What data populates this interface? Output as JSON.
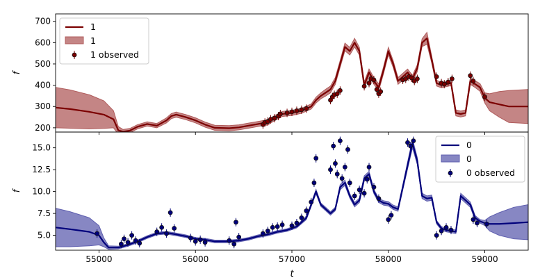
{
  "chart_data": [
    {
      "type": "line",
      "panel": "top",
      "xlabel": "",
      "ylabel": "f",
      "xlim": [
        54550,
        59450
      ],
      "ylim": [
        180,
        735
      ],
      "yticks": [
        200,
        300,
        400,
        500,
        600,
        700
      ],
      "xticks": [
        55000,
        56000,
        57000,
        58000,
        59000
      ],
      "color": "#7b0000",
      "band_color": "#b05c5c",
      "legend": {
        "position": "upper-left",
        "line_label": "1",
        "band_label": "1",
        "points_label": "1 observed"
      },
      "model": {
        "x": [
          54550,
          54700,
          54900,
          55050,
          55150,
          55200,
          55250,
          55320,
          55400,
          55500,
          55600,
          55700,
          55750,
          55800,
          55900,
          56000,
          56100,
          56200,
          56350,
          56450,
          56550,
          56650,
          56700,
          56750,
          56800,
          56900,
          57000,
          57100,
          57200,
          57250,
          57300,
          57350,
          57400,
          57450,
          57500,
          57550,
          57600,
          57650,
          57700,
          57750,
          57800,
          57850,
          57900,
          57950,
          58000,
          58050,
          58100,
          58150,
          58200,
          58250,
          58300,
          58350,
          58400,
          58450,
          58500,
          58550,
          58600,
          58650,
          58700,
          58750,
          58800,
          58850,
          58900,
          58950,
          59000,
          59050,
          59150,
          59250,
          59450
        ],
        "y": [
          295,
          288,
          275,
          262,
          240,
          188,
          182,
          187,
          205,
          218,
          210,
          235,
          255,
          262,
          250,
          235,
          215,
          200,
          198,
          202,
          210,
          218,
          222,
          225,
          240,
          265,
          270,
          280,
          300,
          330,
          350,
          365,
          380,
          420,
          500,
          580,
          560,
          600,
          560,
          400,
          460,
          420,
          390,
          470,
          560,
          500,
          420,
          440,
          460,
          430,
          480,
          600,
          620,
          520,
          410,
          400,
          405,
          410,
          270,
          265,
          270,
          420,
          405,
          390,
          340,
          320,
          310,
          300,
          300
        ],
        "band": [
          95,
          90,
          80,
          65,
          40,
          18,
          10,
          10,
          10,
          10,
          10,
          12,
          12,
          12,
          12,
          12,
          12,
          12,
          12,
          12,
          12,
          12,
          12,
          12,
          12,
          12,
          12,
          12,
          12,
          14,
          14,
          16,
          16,
          16,
          16,
          18,
          18,
          20,
          18,
          16,
          16,
          16,
          16,
          16,
          18,
          16,
          16,
          16,
          16,
          16,
          16,
          18,
          28,
          16,
          14,
          12,
          12,
          12,
          14,
          14,
          14,
          16,
          16,
          18,
          24,
          40,
          60,
          75,
          80
        ]
      },
      "observed": [
        {
          "x": 56700,
          "y": 215
        },
        {
          "x": 56720,
          "y": 225
        },
        {
          "x": 56750,
          "y": 230
        },
        {
          "x": 56780,
          "y": 240
        },
        {
          "x": 56820,
          "y": 245
        },
        {
          "x": 56860,
          "y": 255
        },
        {
          "x": 56880,
          "y": 265
        },
        {
          "x": 56950,
          "y": 270
        },
        {
          "x": 57000,
          "y": 275
        },
        {
          "x": 57050,
          "y": 280
        },
        {
          "x": 57100,
          "y": 285
        },
        {
          "x": 57150,
          "y": 290
        },
        {
          "x": 57400,
          "y": 330
        },
        {
          "x": 57420,
          "y": 345
        },
        {
          "x": 57440,
          "y": 355
        },
        {
          "x": 57470,
          "y": 360
        },
        {
          "x": 57500,
          "y": 375
        },
        {
          "x": 57750,
          "y": 395
        },
        {
          "x": 57800,
          "y": 410
        },
        {
          "x": 57820,
          "y": 430
        },
        {
          "x": 57850,
          "y": 425
        },
        {
          "x": 57880,
          "y": 380
        },
        {
          "x": 57900,
          "y": 360
        },
        {
          "x": 57920,
          "y": 370
        },
        {
          "x": 58150,
          "y": 425
        },
        {
          "x": 58180,
          "y": 430
        },
        {
          "x": 58210,
          "y": 440
        },
        {
          "x": 58240,
          "y": 435
        },
        {
          "x": 58270,
          "y": 420
        },
        {
          "x": 58300,
          "y": 430
        },
        {
          "x": 58500,
          "y": 440
        },
        {
          "x": 58550,
          "y": 410
        },
        {
          "x": 58580,
          "y": 405
        },
        {
          "x": 58620,
          "y": 415
        },
        {
          "x": 58660,
          "y": 430
        },
        {
          "x": 58850,
          "y": 445
        },
        {
          "x": 58880,
          "y": 420
        },
        {
          "x": 59000,
          "y": 345
        }
      ]
    },
    {
      "type": "line",
      "panel": "bottom",
      "xlabel": "t",
      "ylabel": "f",
      "xlim": [
        54550,
        59450
      ],
      "ylim": [
        3.3,
        16.8
      ],
      "yticks": [
        5.0,
        7.5,
        10.0,
        12.5,
        15.0
      ],
      "ytick_labels": [
        "5.0",
        "7.5",
        "10.0",
        "12.5",
        "15.0"
      ],
      "xticks": [
        55000,
        56000,
        57000,
        58000,
        59000
      ],
      "xtick_labels": [
        "55000",
        "56000",
        "57000",
        "58000",
        "59000"
      ],
      "color": "#00007b",
      "band_color": "#5f5faf",
      "legend": {
        "position": "upper-right",
        "line_label": "0",
        "band_label": "0",
        "points_label": "0 observed"
      },
      "model": {
        "x": [
          54550,
          54700,
          54900,
          55000,
          55050,
          55100,
          55200,
          55300,
          55400,
          55500,
          55600,
          55700,
          55750,
          55800,
          55900,
          56000,
          56100,
          56200,
          56350,
          56450,
          56550,
          56650,
          56750,
          56850,
          56950,
          57050,
          57150,
          57200,
          57250,
          57300,
          57350,
          57400,
          57450,
          57500,
          57550,
          57600,
          57650,
          57700,
          57750,
          57800,
          57850,
          57900,
          57950,
          58000,
          58050,
          58100,
          58150,
          58200,
          58250,
          58300,
          58350,
          58400,
          58450,
          58500,
          58550,
          58600,
          58650,
          58700,
          58750,
          58800,
          58850,
          58900,
          58950,
          59000,
          59050,
          59150,
          59300,
          59450
        ],
        "y": [
          5.9,
          5.7,
          5.4,
          5.0,
          4.2,
          3.6,
          3.6,
          3.9,
          4.3,
          4.8,
          5.2,
          5.3,
          5.2,
          5.1,
          4.9,
          4.6,
          4.5,
          4.3,
          4.3,
          4.4,
          4.6,
          4.9,
          5.1,
          5.4,
          5.6,
          6.0,
          7.0,
          8.5,
          10.0,
          8.5,
          8.0,
          7.5,
          8.0,
          10.5,
          11.0,
          9.5,
          8.5,
          9.0,
          11.5,
          12.0,
          10.0,
          9.0,
          8.7,
          8.6,
          8.2,
          8.0,
          10.5,
          13.0,
          15.5,
          13.5,
          9.5,
          9.2,
          9.3,
          6.5,
          5.8,
          5.6,
          5.5,
          5.4,
          9.5,
          9.0,
          8.5,
          7.0,
          6.6,
          6.4,
          6.3,
          6.3,
          6.4,
          6.5
        ],
        "band": [
          2.2,
          2.0,
          1.6,
          1.1,
          0.5,
          0.2,
          0.15,
          0.15,
          0.15,
          0.15,
          0.15,
          0.15,
          0.15,
          0.15,
          0.15,
          0.15,
          0.15,
          0.15,
          0.15,
          0.15,
          0.15,
          0.15,
          0.15,
          0.15,
          0.15,
          0.15,
          0.2,
          0.2,
          0.25,
          0.2,
          0.2,
          0.2,
          0.2,
          0.3,
          0.3,
          0.25,
          0.25,
          0.25,
          0.3,
          0.3,
          0.25,
          0.25,
          0.25,
          0.25,
          0.25,
          0.25,
          0.3,
          0.4,
          0.5,
          0.4,
          0.3,
          0.3,
          0.3,
          0.2,
          0.2,
          0.2,
          0.2,
          0.2,
          0.3,
          0.3,
          0.3,
          0.25,
          0.2,
          0.3,
          0.8,
          1.3,
          1.8,
          2.0
        ]
      },
      "observed": [
        {
          "x": 54980,
          "y": 5.2
        },
        {
          "x": 55230,
          "y": 4.0
        },
        {
          "x": 55260,
          "y": 4.6
        },
        {
          "x": 55300,
          "y": 4.2
        },
        {
          "x": 55340,
          "y": 5.0
        },
        {
          "x": 55380,
          "y": 4.4
        },
        {
          "x": 55420,
          "y": 4.1
        },
        {
          "x": 55600,
          "y": 5.4
        },
        {
          "x": 55650,
          "y": 5.9
        },
        {
          "x": 55700,
          "y": 5.2
        },
        {
          "x": 55740,
          "y": 7.6
        },
        {
          "x": 55780,
          "y": 5.8
        },
        {
          "x": 55950,
          "y": 4.7
        },
        {
          "x": 56000,
          "y": 4.3
        },
        {
          "x": 56050,
          "y": 4.5
        },
        {
          "x": 56100,
          "y": 4.2
        },
        {
          "x": 56350,
          "y": 4.4
        },
        {
          "x": 56400,
          "y": 4.0
        },
        {
          "x": 56420,
          "y": 6.5
        },
        {
          "x": 56450,
          "y": 4.8
        },
        {
          "x": 56700,
          "y": 5.2
        },
        {
          "x": 56750,
          "y": 5.5
        },
        {
          "x": 56800,
          "y": 5.9
        },
        {
          "x": 56850,
          "y": 6.0
        },
        {
          "x": 56900,
          "y": 6.2
        },
        {
          "x": 57000,
          "y": 6.1
        },
        {
          "x": 57050,
          "y": 6.4
        },
        {
          "x": 57100,
          "y": 7.0
        },
        {
          "x": 57150,
          "y": 7.8
        },
        {
          "x": 57200,
          "y": 8.8
        },
        {
          "x": 57230,
          "y": 11.0
        },
        {
          "x": 57250,
          "y": 13.8
        },
        {
          "x": 57400,
          "y": 12.5
        },
        {
          "x": 57430,
          "y": 15.2
        },
        {
          "x": 57450,
          "y": 13.2
        },
        {
          "x": 57470,
          "y": 12.0
        },
        {
          "x": 57500,
          "y": 15.8
        },
        {
          "x": 57520,
          "y": 11.5
        },
        {
          "x": 57550,
          "y": 12.8
        },
        {
          "x": 57580,
          "y": 14.8
        },
        {
          "x": 57600,
          "y": 11.0
        },
        {
          "x": 57650,
          "y": 9.5
        },
        {
          "x": 57700,
          "y": 10.2
        },
        {
          "x": 57750,
          "y": 9.8
        },
        {
          "x": 57780,
          "y": 11.4
        },
        {
          "x": 57800,
          "y": 12.8
        },
        {
          "x": 57850,
          "y": 10.5
        },
        {
          "x": 57900,
          "y": 9.2
        },
        {
          "x": 58000,
          "y": 6.8
        },
        {
          "x": 58030,
          "y": 7.3
        },
        {
          "x": 58200,
          "y": 15.6
        },
        {
          "x": 58230,
          "y": 15.2
        },
        {
          "x": 58260,
          "y": 15.8
        },
        {
          "x": 58500,
          "y": 5.0
        },
        {
          "x": 58550,
          "y": 5.5
        },
        {
          "x": 58600,
          "y": 5.9
        },
        {
          "x": 58650,
          "y": 5.6
        },
        {
          "x": 58880,
          "y": 6.8
        },
        {
          "x": 58920,
          "y": 6.4
        },
        {
          "x": 59020,
          "y": 6.3
        }
      ]
    }
  ]
}
